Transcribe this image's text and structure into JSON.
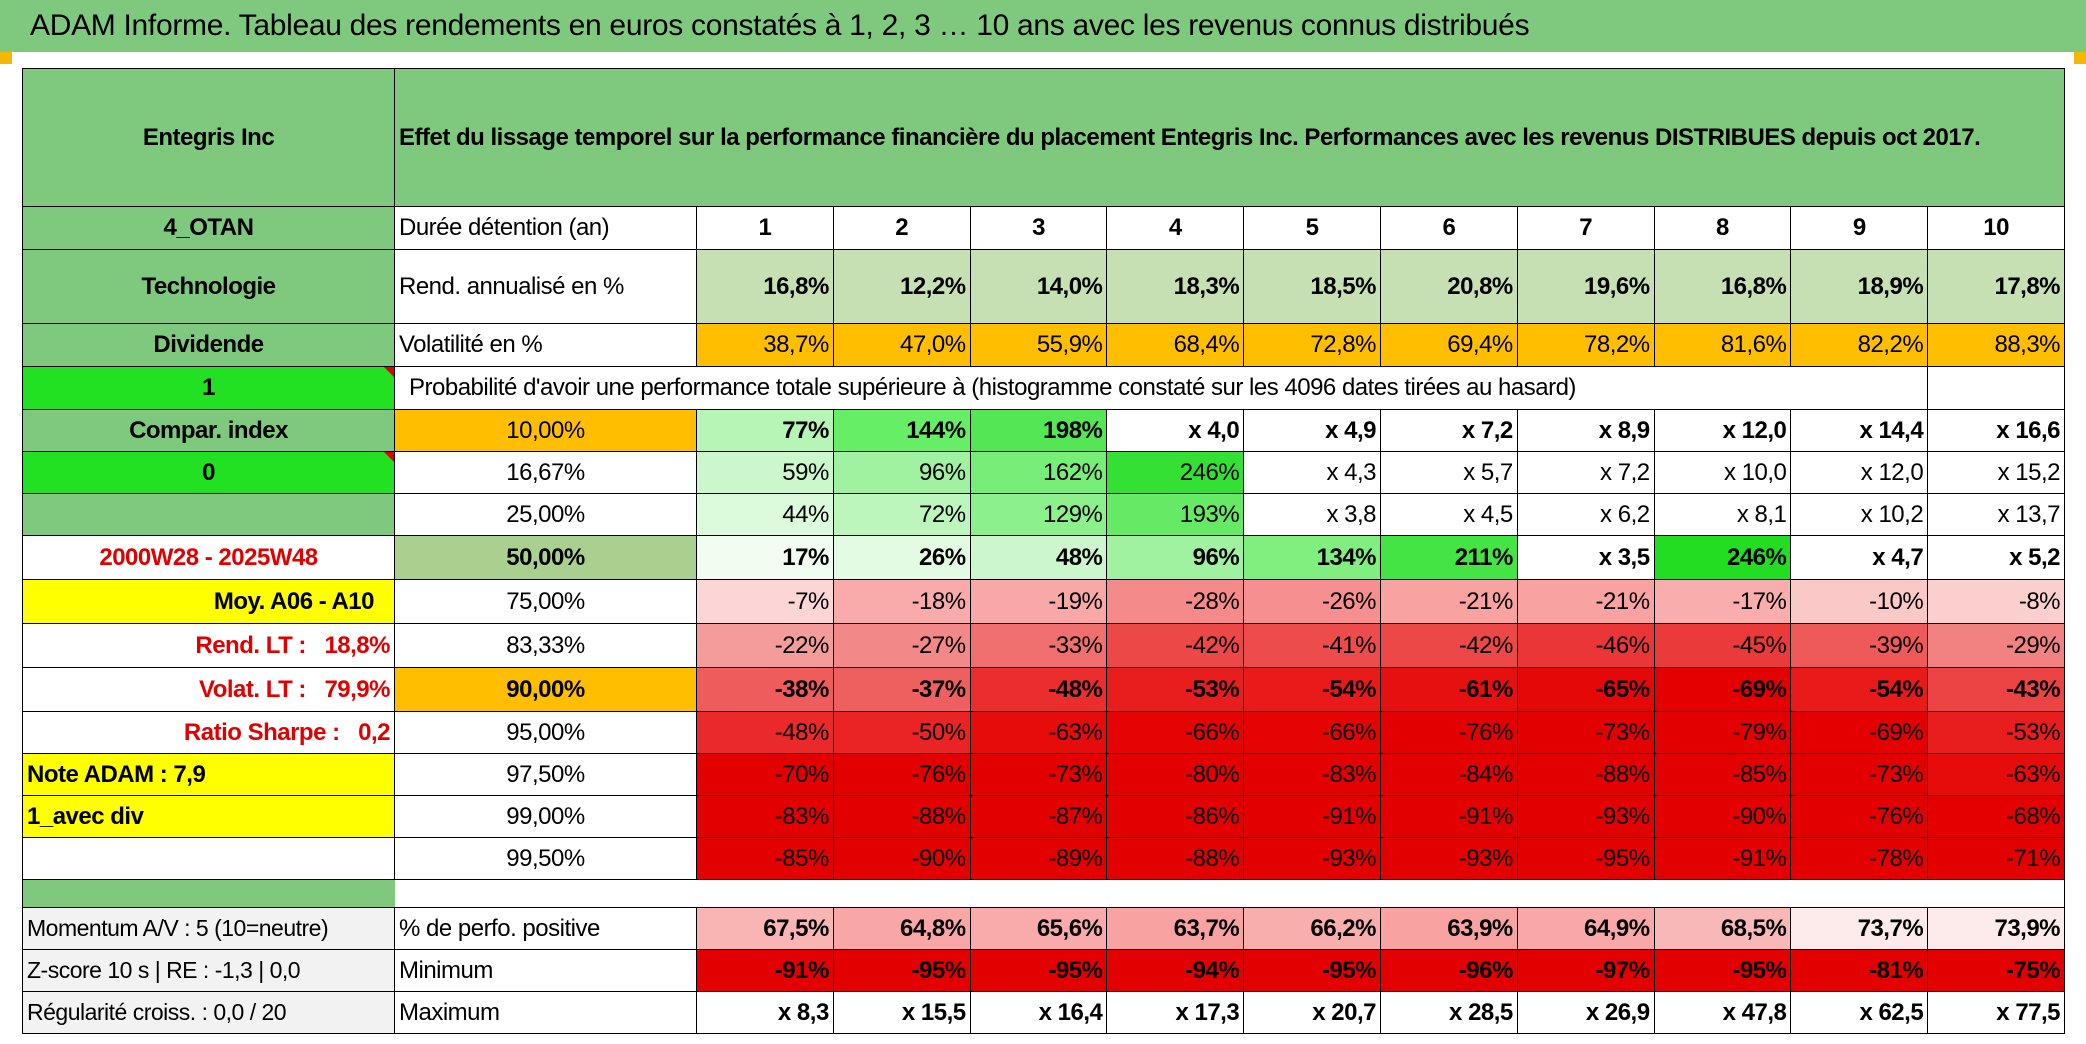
{
  "banner": {
    "title": "ADAM Informe. Tableau des rendements en euros constatés à 1, 2, 3 … 10 ans avec les revenus connus distribués"
  },
  "header": {
    "asset": "Entegris Inc",
    "description": "Effet du lissage temporel sur la performance financière du placement Entegris Inc. Performances avec les revenus DISTRIBUES depuis oct 2017."
  },
  "left": {
    "otan": "4_OTAN",
    "sector": "Technologie",
    "dividend": "Dividende",
    "flag1": "1",
    "compar": "Compar. index",
    "flag0": "0",
    "period": "2000W28 - 2025W48",
    "moy": "Moy. A06 - A10",
    "rend_lt_label": "Rend. LT :",
    "rend_lt_value": "18,8%",
    "volat_lt_label": "Volat. LT :",
    "volat_lt_value": "79,9%",
    "sharpe_label": "Ratio Sharpe :",
    "sharpe_value": "0,2",
    "note": "Note ADAM : 7,9",
    "avec_div": "1_avec div",
    "momentum": "Momentum A/V : 5 (10=neutre)",
    "zscore": "Z-score 10 s | RE : -1,3 | 0,0",
    "regularite": "Régularité croiss. : 0,0 / 20"
  },
  "labels": {
    "duree": "Durée détention (an)",
    "rend": "Rend. annualisé en %",
    "vol": "Volatilité en %",
    "prob": "Probabilité d'avoir une performance totale supérieure à (histogramme constaté sur les 4096 dates tirées au hasard)",
    "pos": "% de perfo. positive",
    "min": "Minimum",
    "max": "Maximum"
  },
  "years": [
    "1",
    "2",
    "3",
    "4",
    "5",
    "6",
    "7",
    "8",
    "9",
    "10"
  ],
  "rend": [
    "16,8%",
    "12,2%",
    "14,0%",
    "18,3%",
    "18,5%",
    "20,8%",
    "19,6%",
    "16,8%",
    "18,9%",
    "17,8%"
  ],
  "vol": [
    "38,7%",
    "47,0%",
    "55,9%",
    "68,4%",
    "72,8%",
    "69,4%",
    "78,2%",
    "81,6%",
    "82,2%",
    "88,3%"
  ],
  "quantiles": [
    {
      "label": "10,00%",
      "values": [
        "77%",
        "144%",
        "198%",
        "x 4,0",
        "x 4,9",
        "x 7,2",
        "x 8,9",
        "x 12,0",
        "x 14,4",
        "x 16,6"
      ],
      "colors": [
        "#b6f5b6",
        "#66ee66",
        "#55e655",
        "#ffffff",
        "#ffffff",
        "#ffffff",
        "#ffffff",
        "#ffffff",
        "#ffffff",
        "#ffffff"
      ]
    },
    {
      "label": "16,67%",
      "values": [
        "59%",
        "96%",
        "162%",
        "246%",
        "x 4,3",
        "x 5,7",
        "x 7,2",
        "x 10,0",
        "x 12,0",
        "x 15,2"
      ],
      "colors": [
        "#ccf7cc",
        "#a0f2a0",
        "#77ee77",
        "#33e033",
        "#ffffff",
        "#ffffff",
        "#ffffff",
        "#ffffff",
        "#ffffff",
        "#ffffff"
      ]
    },
    {
      "label": "25,00%",
      "values": [
        "44%",
        "72%",
        "129%",
        "193%",
        "x 3,8",
        "x 4,5",
        "x 6,2",
        "x 8,1",
        "x 10,2",
        "x 13,7"
      ],
      "colors": [
        "#dcfadc",
        "#bdf6bd",
        "#8cf08c",
        "#66ea66",
        "#ffffff",
        "#ffffff",
        "#ffffff",
        "#ffffff",
        "#ffffff",
        "#ffffff"
      ]
    },
    {
      "label": "50,00%",
      "values": [
        "17%",
        "26%",
        "48%",
        "96%",
        "134%",
        "211%",
        "x 3,5",
        "246%",
        "x 4,7",
        "x 5,2"
      ],
      "colors": [
        "#f0fdf0",
        "#e2fbe2",
        "#ccf7cc",
        "#a0f2a0",
        "#80ef80",
        "#44e444",
        "#ffffff",
        "#22dd22",
        "#ffffff",
        "#ffffff"
      ]
    },
    {
      "label": "75,00%",
      "values": [
        "-7%",
        "-18%",
        "-19%",
        "-28%",
        "-26%",
        "-21%",
        "-21%",
        "-17%",
        "-10%",
        "-8%"
      ],
      "colors": [
        "#fcd6d6",
        "#f9aaaa",
        "#f9a8a8",
        "#f58a8a",
        "#f69090",
        "#f8a2a2",
        "#f8a2a2",
        "#f9adad",
        "#fbc8c8",
        "#fccfcf"
      ]
    },
    {
      "label": "83,33%",
      "values": [
        "-22%",
        "-27%",
        "-33%",
        "-42%",
        "-41%",
        "-42%",
        "-46%",
        "-45%",
        "-39%",
        "-29%"
      ],
      "colors": [
        "#f49c9c",
        "#f28888",
        "#f07070",
        "#ec4848",
        "#ec4c4c",
        "#ec4848",
        "#ea3636",
        "#ea3a3a",
        "#ee5a5a",
        "#f28282"
      ]
    },
    {
      "label": "90,00%",
      "values": [
        "-38%",
        "-37%",
        "-48%",
        "-53%",
        "-54%",
        "-61%",
        "-65%",
        "-69%",
        "-54%",
        "-43%"
      ],
      "colors": [
        "#ee5c5c",
        "#ee6060",
        "#ea2e2e",
        "#e81e1e",
        "#e81a1a",
        "#e61010",
        "#e40808",
        "#e40000",
        "#e81a1a",
        "#ec4444"
      ]
    },
    {
      "label": "95,00%",
      "values": [
        "-48%",
        "-50%",
        "-63%",
        "-66%",
        "-66%",
        "-76%",
        "-73%",
        "-79%",
        "-69%",
        "-53%"
      ],
      "colors": [
        "#ea2a2a",
        "#ea2424",
        "#e60c0c",
        "#e40404",
        "#e40404",
        "#e20000",
        "#e20000",
        "#e20000",
        "#e40000",
        "#e81e1e"
      ]
    },
    {
      "label": "97,50%",
      "values": [
        "-70%",
        "-76%",
        "-73%",
        "-80%",
        "-83%",
        "-84%",
        "-88%",
        "-85%",
        "-73%",
        "-63%"
      ],
      "colors": [
        "#e20000",
        "#e20000",
        "#e20000",
        "#e20000",
        "#e20000",
        "#e20000",
        "#e20000",
        "#e20000",
        "#e20000",
        "#e60c0c"
      ]
    },
    {
      "label": "99,00%",
      "values": [
        "-83%",
        "-88%",
        "-87%",
        "-86%",
        "-91%",
        "-91%",
        "-93%",
        "-90%",
        "-76%",
        "-68%"
      ],
      "colors": [
        "#e20000",
        "#e20000",
        "#e20000",
        "#e20000",
        "#e20000",
        "#e20000",
        "#e20000",
        "#e20000",
        "#e20000",
        "#e40000"
      ]
    },
    {
      "label": "99,50%",
      "values": [
        "-85%",
        "-90%",
        "-89%",
        "-88%",
        "-93%",
        "-93%",
        "-95%",
        "-91%",
        "-78%",
        "-71%"
      ],
      "colors": [
        "#e20000",
        "#e20000",
        "#e20000",
        "#e20000",
        "#e20000",
        "#e20000",
        "#e20000",
        "#e20000",
        "#e20000",
        "#e20000"
      ]
    }
  ],
  "pos": {
    "values": [
      "67,5%",
      "64,8%",
      "65,6%",
      "63,7%",
      "66,2%",
      "63,9%",
      "64,9%",
      "68,5%",
      "73,7%",
      "73,9%"
    ],
    "colors": [
      "#f9b4b4",
      "#f8a6a6",
      "#f9aaaa",
      "#f8a2a2",
      "#f9aeae",
      "#f8a2a2",
      "#f8a8a8",
      "#f9b8b8",
      "#fdeaea",
      "#fdeaea"
    ]
  },
  "min": {
    "values": [
      "-91%",
      "-95%",
      "-95%",
      "-94%",
      "-95%",
      "-96%",
      "-97%",
      "-95%",
      "-81%",
      "-75%"
    ],
    "colors": [
      "#e20000",
      "#e20000",
      "#e20000",
      "#e20000",
      "#e20000",
      "#e20000",
      "#e20000",
      "#e20000",
      "#e20000",
      "#e20000"
    ]
  },
  "max": {
    "values": [
      "x 8,3",
      "x 15,5",
      "x 16,4",
      "x 17,3",
      "x 20,7",
      "x 28,5",
      "x 26,9",
      "x 47,8",
      "x 62,5",
      "x 77,5"
    ]
  },
  "colors": {
    "rend_bg": "#c6e0b4",
    "vol_bg": "#ffbf00",
    "green": "#7fc97f",
    "lime": "#22e022",
    "accent_red": "#e00000"
  }
}
